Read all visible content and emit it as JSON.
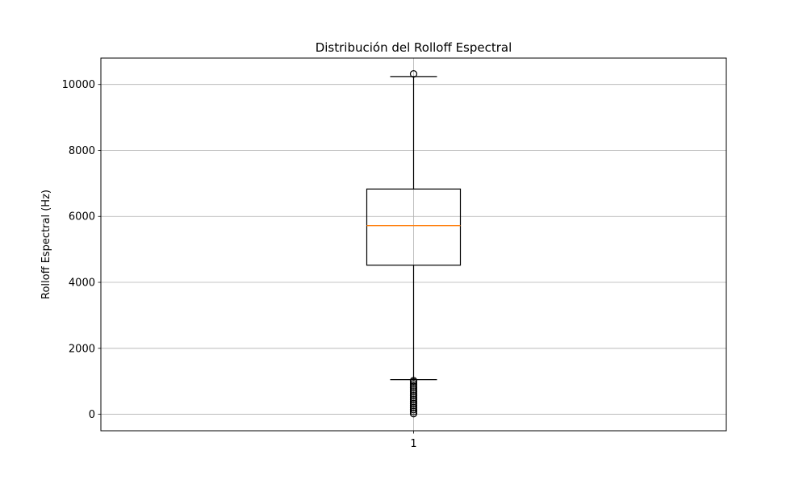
{
  "chart_data": {
    "type": "boxplot",
    "title": "Distribución del Rolloff Espectral",
    "xlabel": "",
    "ylabel": "Rolloff Espectral (Hz)",
    "ylim": [
      -500,
      10800
    ],
    "yticks": [
      0,
      2000,
      4000,
      6000,
      8000,
      10000
    ],
    "categories": [
      "1"
    ],
    "grid": true,
    "boxes": [
      {
        "category": "1",
        "whisker_low": 1050,
        "q1": 4520,
        "median": 5720,
        "q3": 6830,
        "whisker_high": 10240,
        "outliers": [
          10320,
          20,
          80,
          140,
          200,
          260,
          320,
          380,
          440,
          500,
          560,
          620,
          680,
          740,
          800,
          860,
          920,
          980,
          1020
        ]
      }
    ],
    "colors": {
      "box": "#000000",
      "median": "#ff7f0e",
      "grid": "#b0b0b0",
      "axes": "#000000"
    }
  }
}
